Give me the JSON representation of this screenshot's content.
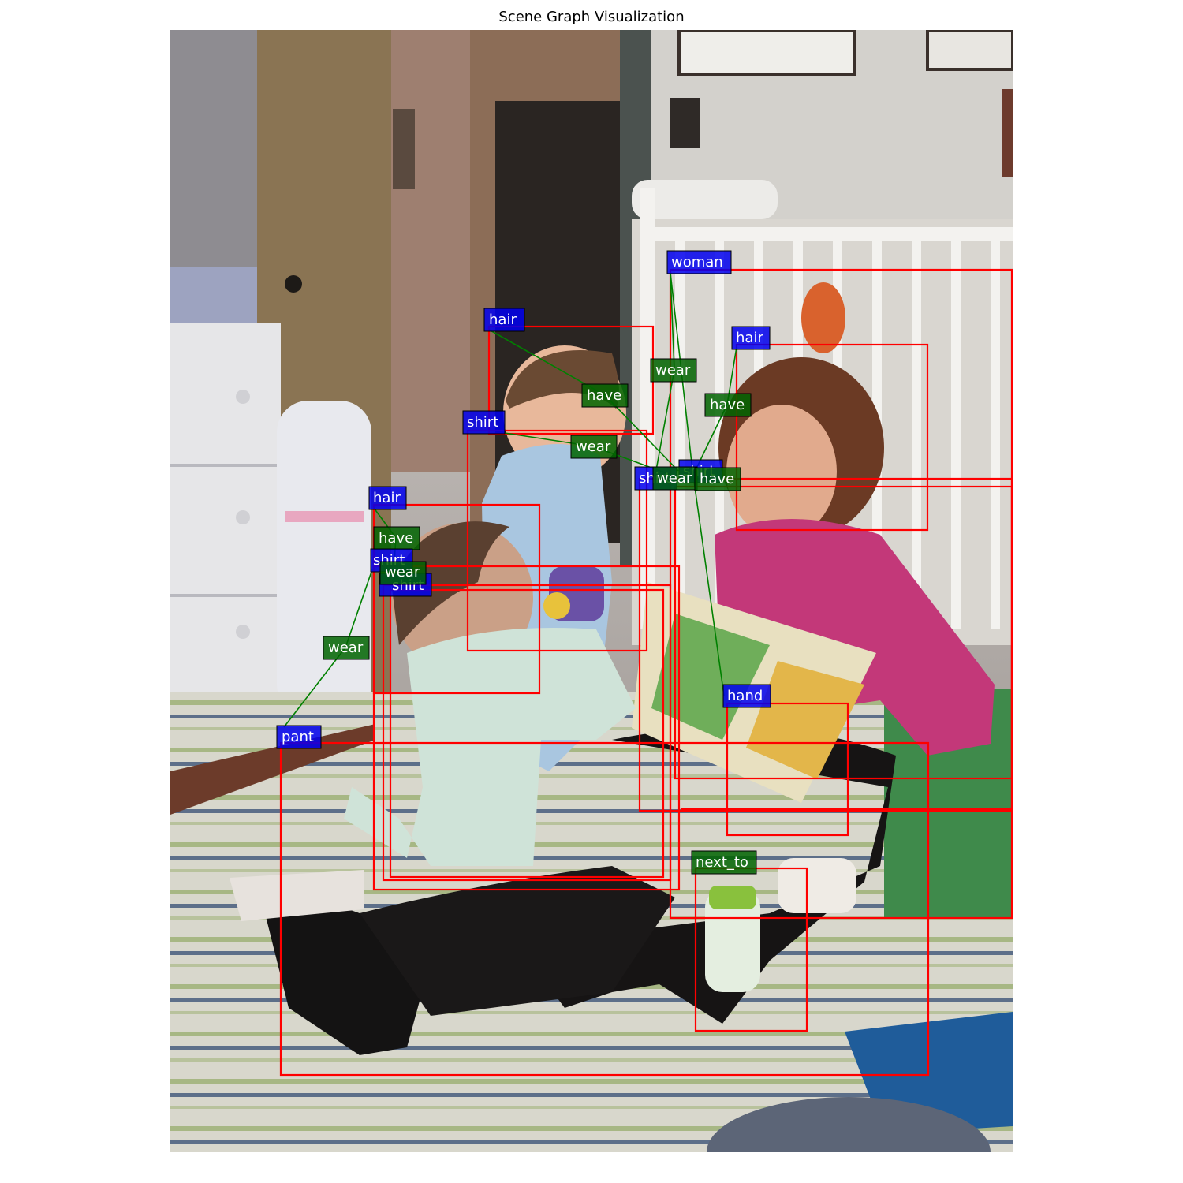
{
  "title": "Scene Graph Visualization",
  "colors": {
    "box": "#ff0000",
    "object_label_bg": "#0000ee",
    "relation_label_bg": "#006400",
    "edge": "#008000",
    "label_text": "#ffffff"
  },
  "objects": [
    {
      "id": "woman",
      "label": "woman"
    },
    {
      "id": "hair_boy",
      "label": "hair"
    },
    {
      "id": "hair_woman",
      "label": "hair"
    },
    {
      "id": "shirt_boy",
      "label": "shirt"
    },
    {
      "id": "shirt_woman_a",
      "label": "shirt"
    },
    {
      "id": "shirt_woman_b",
      "label": "shirt"
    },
    {
      "id": "hair_baby",
      "label": "hair"
    },
    {
      "id": "shirt_baby_a",
      "label": "shirt"
    },
    {
      "id": "shirt_baby_b",
      "label": "shirt"
    },
    {
      "id": "pant",
      "label": "pant"
    },
    {
      "id": "hand",
      "label": "hand"
    }
  ],
  "relations": [
    {
      "id": "r_wear_1",
      "label": "wear"
    },
    {
      "id": "r_have_1",
      "label": "have"
    },
    {
      "id": "r_have_2",
      "label": "have"
    },
    {
      "id": "r_wear_2",
      "label": "wear"
    },
    {
      "id": "r_wear_3",
      "label": "wear"
    },
    {
      "id": "r_have_3",
      "label": "have"
    },
    {
      "id": "r_have_4",
      "label": "have"
    },
    {
      "id": "r_wear_4",
      "label": "wear"
    },
    {
      "id": "r_wear_5",
      "label": "wear"
    },
    {
      "id": "r_next_to",
      "label": "next_to"
    }
  ]
}
